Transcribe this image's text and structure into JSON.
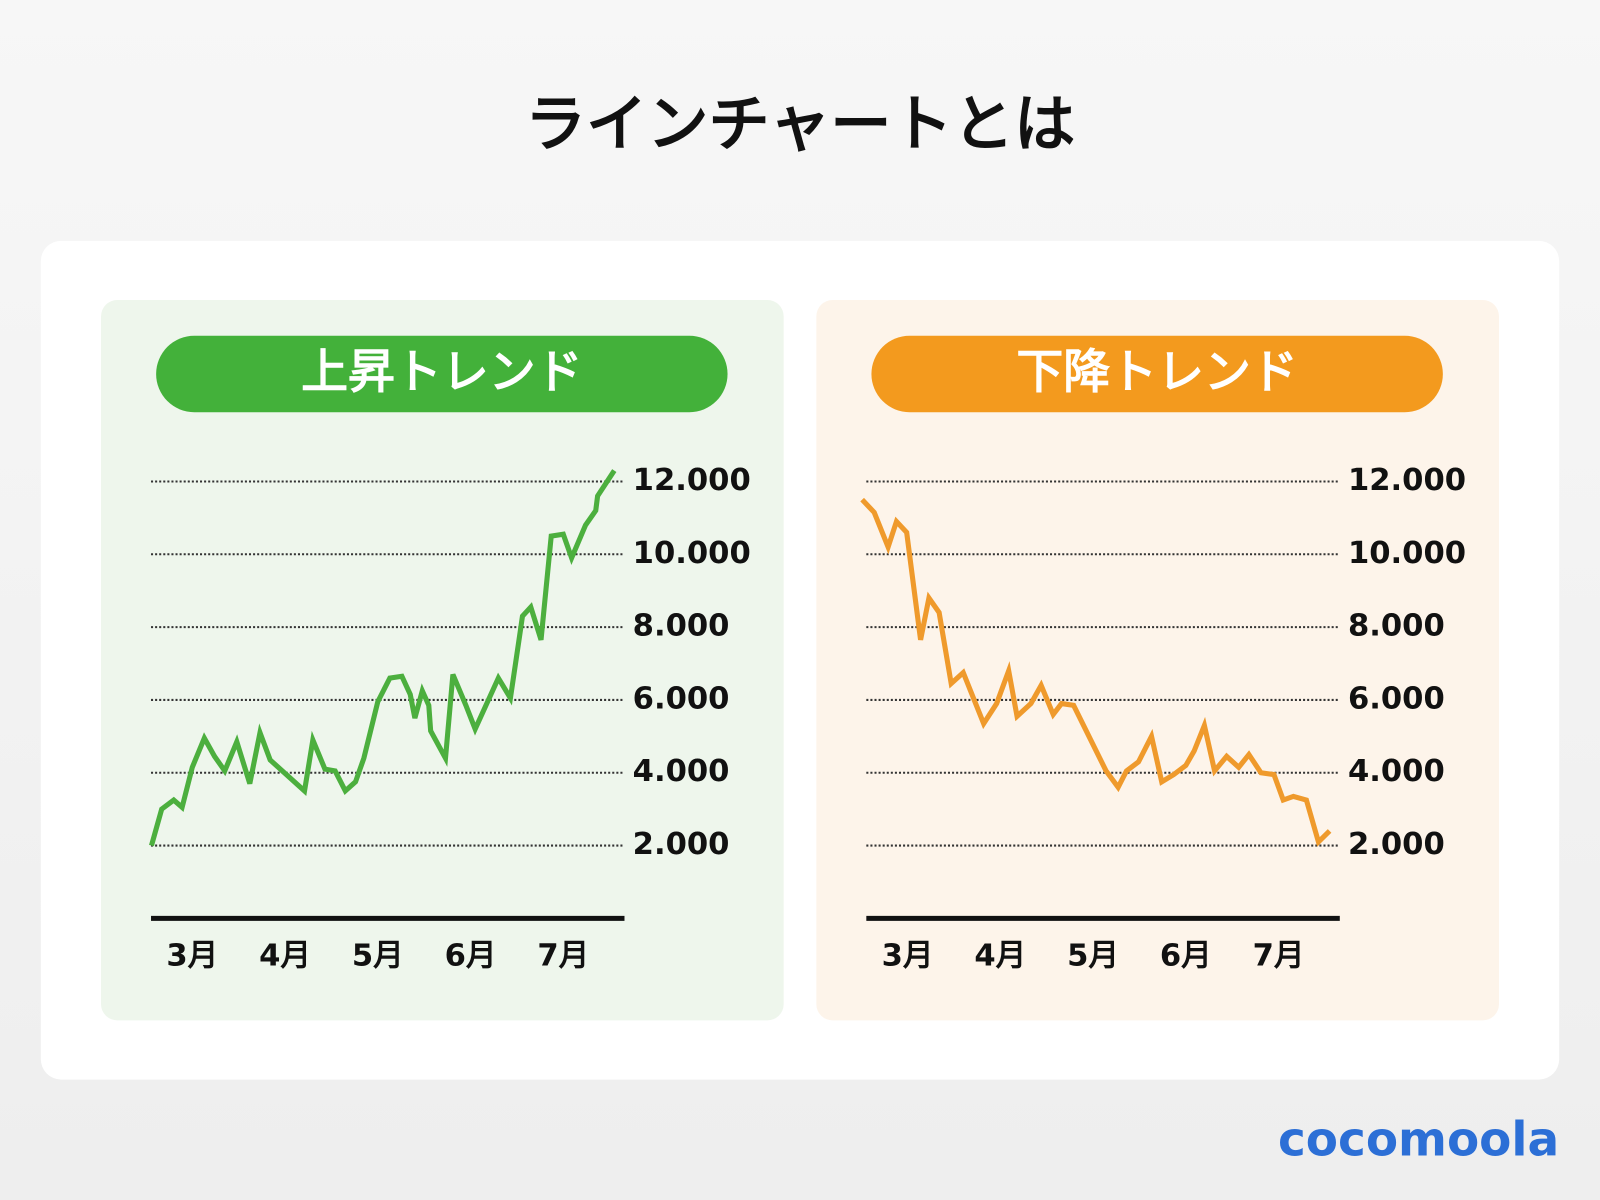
{
  "title": "ラインチャートとは",
  "logo": "cocomoola",
  "chart_data": [
    {
      "type": "line",
      "title": "上昇トレンド",
      "color": "#4caf3e",
      "title_color": "#43b13a",
      "background": "#eef6ec",
      "x": [
        2.56,
        2.67,
        2.8,
        2.89,
        3.0,
        3.13,
        3.24,
        3.35,
        3.48,
        3.62,
        3.73,
        3.84,
        4.21,
        4.3,
        4.43,
        4.54,
        4.65,
        4.76,
        4.85,
        5.0,
        5.13,
        5.26,
        5.35,
        5.4,
        5.48,
        5.55,
        5.57,
        5.73,
        5.81,
        5.95,
        6.05,
        6.3,
        6.43,
        6.52,
        6.56,
        6.65,
        6.76,
        6.87,
        7.0,
        7.09,
        7.24,
        7.35,
        7.37,
        7.55
      ],
      "values": [
        2000,
        3000,
        3250,
        3050,
        4150,
        4950,
        4450,
        4050,
        4850,
        3700,
        5100,
        4350,
        3500,
        4900,
        4100,
        4050,
        3500,
        3750,
        4400,
        5950,
        6600,
        6650,
        6150,
        5500,
        6250,
        5850,
        5150,
        4400,
        6700,
        5850,
        5200,
        6600,
        6050,
        7600,
        8300,
        8550,
        7650,
        10500,
        10550,
        9900,
        10800,
        11200,
        11600,
        12300
      ],
      "xlim": [
        2.5,
        7.66
      ],
      "ylim": [
        0,
        12500
      ],
      "xticks": [
        {
          "value": 3,
          "label": "3月"
        },
        {
          "value": 4,
          "label": "4月"
        },
        {
          "value": 5,
          "label": "5月"
        },
        {
          "value": 6,
          "label": "6月"
        },
        {
          "value": 7,
          "label": "7月"
        }
      ],
      "yticks": [
        {
          "value": 2000,
          "label": "2.000"
        },
        {
          "value": 4000,
          "label": "4.000"
        },
        {
          "value": 6000,
          "label": "6.000"
        },
        {
          "value": 8000,
          "label": "8.000"
        },
        {
          "value": 10000,
          "label": "10.000"
        },
        {
          "value": 12000,
          "label": "12.000"
        }
      ],
      "grid": true
    },
    {
      "type": "line",
      "title": "下降トレンド",
      "color": "#ef9a2c",
      "title_color": "#f39a1e",
      "background": "#fdf4ea",
      "x": [
        2.51,
        2.64,
        2.79,
        2.88,
        2.99,
        3.14,
        3.23,
        3.34,
        3.47,
        3.6,
        3.82,
        3.96,
        4.09,
        4.18,
        4.33,
        4.44,
        4.57,
        4.66,
        4.79,
        5.14,
        5.27,
        5.36,
        5.49,
        5.63,
        5.74,
        5.87,
        6.0,
        6.09,
        6.2,
        6.31,
        6.44,
        6.57,
        6.68,
        6.81,
        6.95,
        7.05,
        7.16,
        7.3,
        7.43,
        7.55
      ],
      "values": [
        11500,
        11150,
        10200,
        10900,
        10600,
        7650,
        8800,
        8400,
        6450,
        6750,
        5350,
        5900,
        6800,
        5550,
        5900,
        6400,
        5600,
        5900,
        5850,
        4050,
        3600,
        4050,
        4300,
        5000,
        3750,
        3950,
        4200,
        4600,
        5300,
        4050,
        4450,
        4150,
        4500,
        4000,
        3950,
        3250,
        3350,
        3250,
        2100,
        2400
      ],
      "xlim": [
        2.5,
        7.66
      ],
      "ylim": [
        0,
        12500
      ],
      "xticks": [
        {
          "value": 3,
          "label": "3月"
        },
        {
          "value": 4,
          "label": "4月"
        },
        {
          "value": 5,
          "label": "5月"
        },
        {
          "value": 6,
          "label": "6月"
        },
        {
          "value": 7,
          "label": "7月"
        }
      ],
      "yticks": [
        {
          "value": 2000,
          "label": "2.000"
        },
        {
          "value": 4000,
          "label": "4.000"
        },
        {
          "value": 6000,
          "label": "6.000"
        },
        {
          "value": 8000,
          "label": "8.000"
        },
        {
          "value": 10000,
          "label": "10.000"
        },
        {
          "value": 12000,
          "label": "12.000"
        }
      ],
      "grid": true
    }
  ]
}
